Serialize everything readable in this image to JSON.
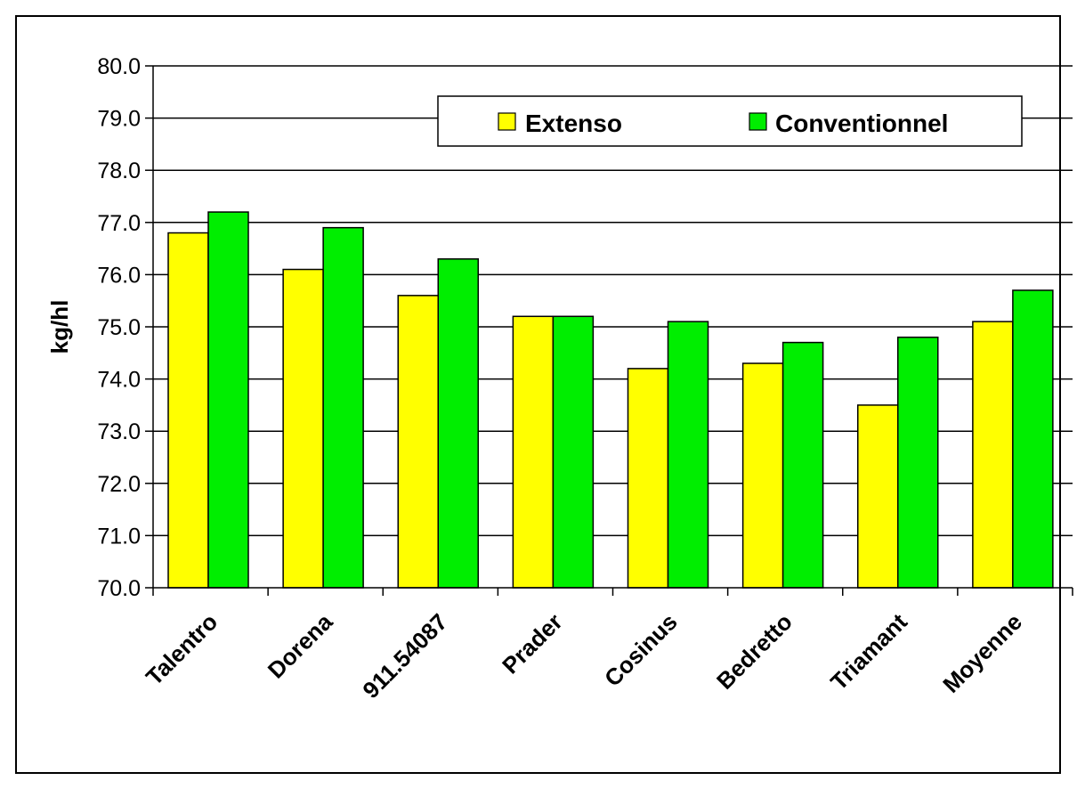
{
  "chart_data": {
    "type": "bar",
    "title": "",
    "xlabel": "",
    "ylabel": "kg/hl",
    "ylim": [
      70.0,
      80.0
    ],
    "ytick_step": 1.0,
    "categories": [
      "Talentro",
      "Dorena",
      "911.54087",
      "Prader",
      "Cosinus",
      "Bedretto",
      "Triamant",
      "Moyenne"
    ],
    "series": [
      {
        "name": "Extenso",
        "color": "#ffff00",
        "values": [
          76.8,
          76.1,
          75.6,
          75.2,
          74.2,
          74.3,
          73.5,
          75.1
        ]
      },
      {
        "name": "Conventionnel",
        "color": "#00ee00",
        "values": [
          77.2,
          76.9,
          76.3,
          75.2,
          75.1,
          74.7,
          74.8,
          75.7
        ]
      }
    ],
    "grid": true,
    "legend_position": "top-right"
  }
}
